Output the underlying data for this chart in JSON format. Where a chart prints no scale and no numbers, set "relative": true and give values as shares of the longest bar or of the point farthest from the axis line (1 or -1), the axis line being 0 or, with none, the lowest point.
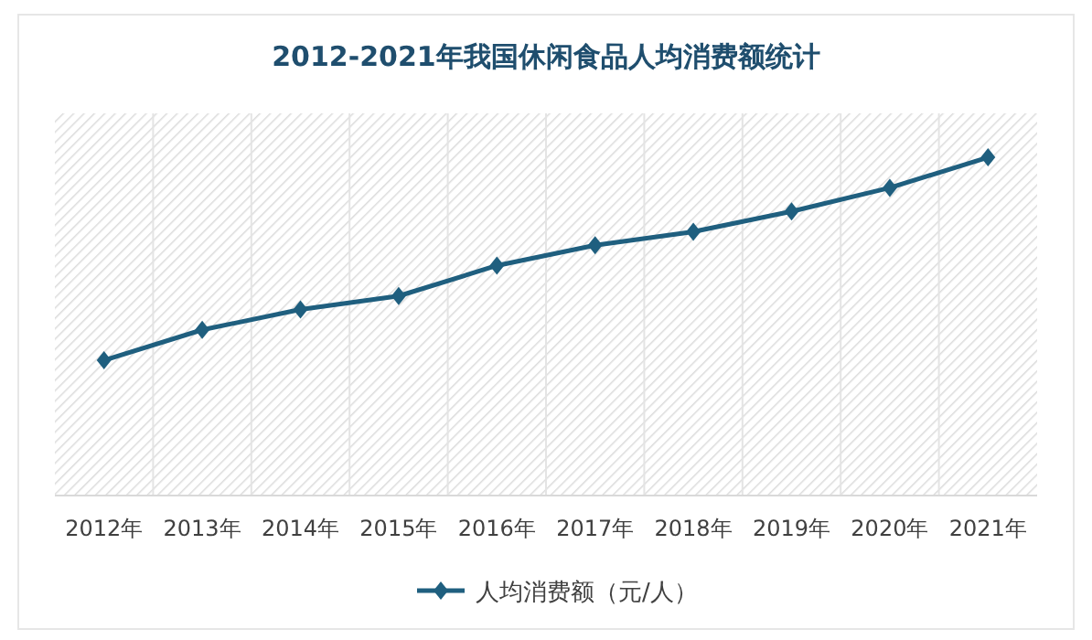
{
  "chart_data": {
    "type": "line",
    "title": "2012-2021年我国休闲食品人均消费额统计",
    "relative": true,
    "categories": [
      "2012年",
      "2013年",
      "2014年",
      "2015年",
      "2016年",
      "2017年",
      "2018年",
      "2019年",
      "2020年",
      "2021年"
    ],
    "series": [
      {
        "name": "人均消费额（元/人）",
        "color": "#1f5f7f",
        "values": [
          0.4,
          0.49,
          0.55,
          0.59,
          0.68,
          0.74,
          0.78,
          0.84,
          0.91,
          1
        ]
      }
    ],
    "marker": "diamond",
    "line_style": "solid",
    "grid": "x",
    "legend": "bottom"
  }
}
